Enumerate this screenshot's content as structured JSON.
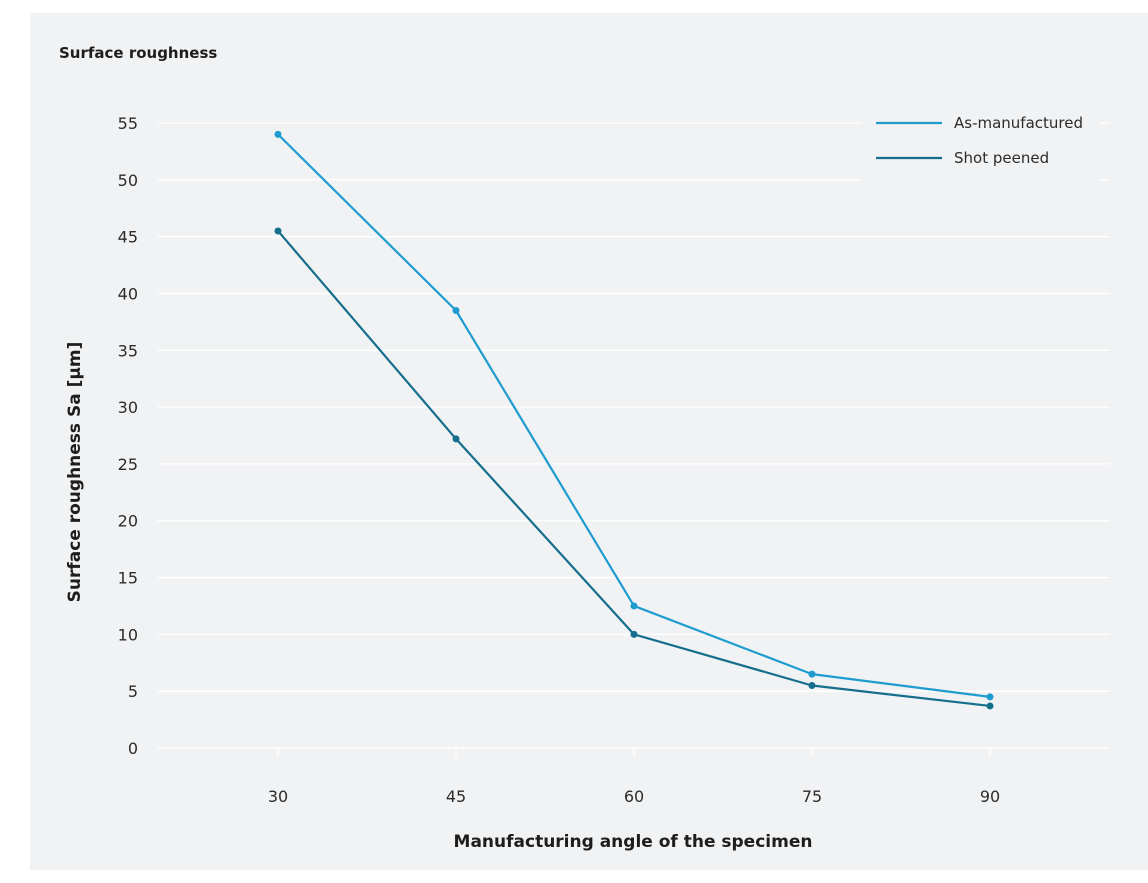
{
  "chart_data": {
    "type": "line",
    "title": "Surface roughness",
    "xlabel": "Manufacturing angle of the specimen",
    "ylabel": "Surface roughness Sa [µm]",
    "x": [
      30,
      45,
      60,
      75,
      90
    ],
    "x_tick_labels": [
      "30",
      "45",
      "60",
      "75",
      "90"
    ],
    "y_ticks": [
      0,
      5,
      10,
      15,
      20,
      25,
      30,
      35,
      40,
      45,
      50,
      55
    ],
    "y_tick_labels": [
      "0",
      "5",
      "10",
      "15",
      "20",
      "25",
      "30",
      "35",
      "40",
      "45",
      "50",
      "55"
    ],
    "ylim": [
      0,
      55
    ],
    "grid": "horizontal",
    "legend_position": "top-right",
    "series": [
      {
        "name": "As-manufactured",
        "color": "#1f9ccf",
        "values": [
          54,
          38.5,
          12.5,
          6.5,
          4.5
        ]
      },
      {
        "name": "Shot peened",
        "color": "#156e8c",
        "values": [
          45.5,
          27.2,
          10,
          5.5,
          3.7
        ]
      }
    ]
  }
}
